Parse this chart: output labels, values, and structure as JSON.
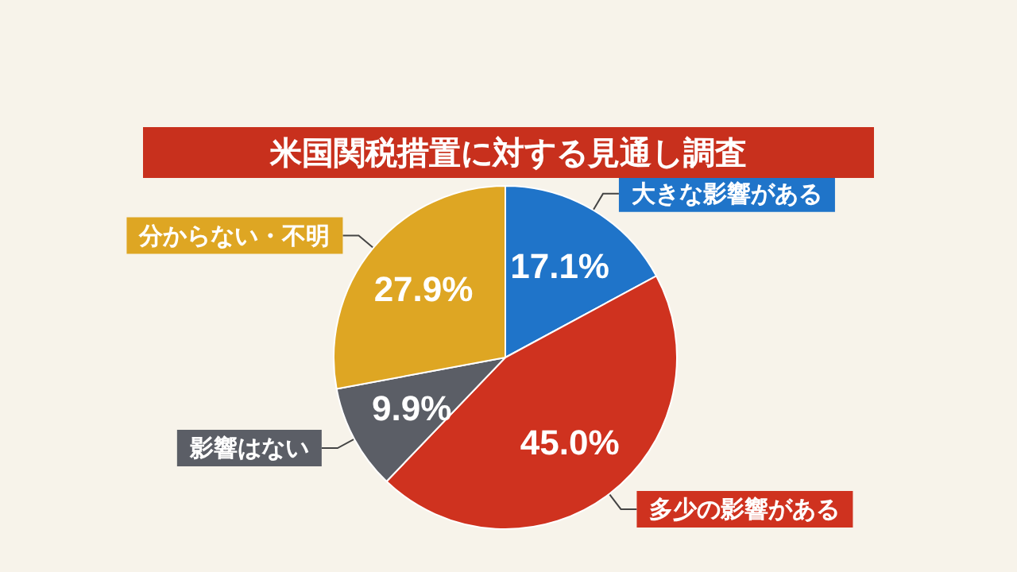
{
  "chart_data": {
    "type": "pie",
    "title": "米国関税措置に対する見通し調査",
    "categories": [
      "大きな影響がある",
      "多少の影響がある",
      "影響はない",
      "分からない・不明"
    ],
    "values": [
      17.1,
      45.0,
      9.9,
      27.9
    ],
    "colors": [
      "#1f74c9",
      "#cf321f",
      "#5b5e66",
      "#dea623"
    ],
    "value_labels": [
      "17.1%",
      "45.0%",
      "9.9%",
      "27.9%"
    ],
    "legend": false
  }
}
